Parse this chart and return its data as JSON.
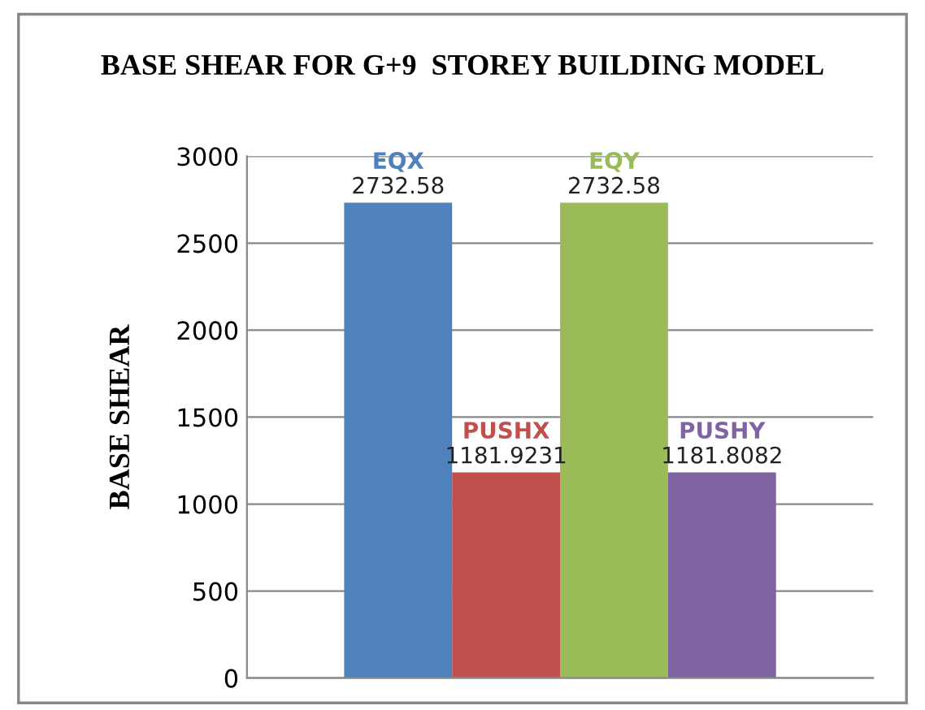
{
  "chart_data": {
    "type": "bar",
    "title": "BASE SHEAR FOR G+9  STOREY BUILDING MODEL",
    "ylabel": "BASE SHEAR",
    "categories": [
      null
    ],
    "series": [
      {
        "name": "EQX",
        "color": "#4f81bd",
        "values": [
          2732.58
        ]
      },
      {
        "name": "PUSHX",
        "color": "#c0504d",
        "values": [
          1181.9231
        ]
      },
      {
        "name": "EQY",
        "color": "#9bbb59",
        "values": [
          2732.58
        ]
      },
      {
        "name": "PUSHY",
        "color": "#8064a2",
        "values": [
          1181.8082
        ]
      }
    ],
    "ylim": [
      0,
      3000
    ],
    "yticks": [
      0,
      500,
      1000,
      1500,
      2000,
      2500,
      3000
    ],
    "grid": "y",
    "data_labels": true,
    "legend": false
  }
}
